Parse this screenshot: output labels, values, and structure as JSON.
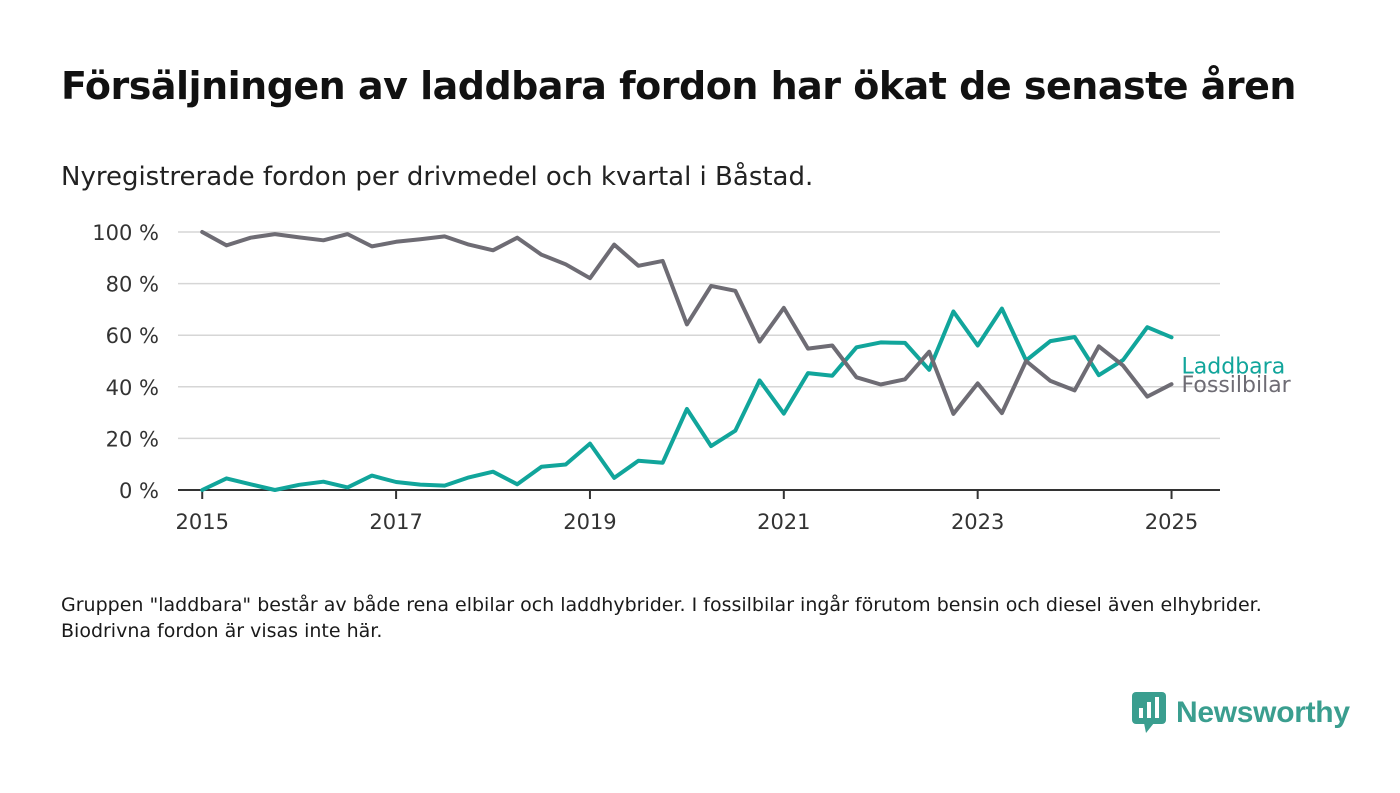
{
  "title": "Försäljningen av laddbara fordon har ökat de senaste åren",
  "subtitle": "Nyregistrerade fordon per drivmedel och kvartal i Båstad.",
  "note": "Gruppen \"laddbara\" består av både rena elbilar och laddhybrider. I fossilbilar ingår förutom bensin och diesel även elhybrider. Biodrivna fordon är visas inte här.",
  "logo": {
    "text": "Newsworthy",
    "icon": "bar-chart-speech-bubble-icon"
  },
  "colors": {
    "laddbara": "#11a59b",
    "fossil": "#6e6c74",
    "grid": "#d6d6d6",
    "axis": "#333333",
    "text": "#333333"
  },
  "chart_data": {
    "type": "line",
    "ylim": [
      0,
      100
    ],
    "yticks": [
      0,
      20,
      40,
      60,
      80,
      100
    ],
    "ytick_labels": [
      "0 %",
      "20 %",
      "40 %",
      "60 %",
      "80 %",
      "100 %"
    ],
    "xlim": [
      2014.75,
      2025.5
    ],
    "xticks": [
      2015,
      2017,
      2019,
      2021,
      2023,
      2025
    ],
    "xtick_labels": [
      "2015",
      "2017",
      "2019",
      "2021",
      "2023",
      "2025"
    ],
    "x": [
      2015,
      2015.25,
      2015.5,
      2015.75,
      2016,
      2016.25,
      2016.5,
      2016.75,
      2017,
      2017.25,
      2017.5,
      2017.75,
      2018,
      2018.25,
      2018.5,
      2018.75,
      2019,
      2019.25,
      2019.5,
      2019.75,
      2020,
      2020.25,
      2020.5,
      2020.75,
      2021,
      2021.25,
      2021.5,
      2021.75,
      2022,
      2022.25,
      2022.5,
      2022.75,
      2023,
      2023.25,
      2023.5,
      2023.75,
      2024,
      2024.25,
      2024.5,
      2024.75,
      2025
    ],
    "series": [
      {
        "name": "Laddbara",
        "color": "#11a59b",
        "values": [
          0,
          4.5,
          2.2,
          0,
          2,
          3.2,
          1,
          5.6,
          3.1,
          2.1,
          1.7,
          4.9,
          7.1,
          2.2,
          9,
          9.9,
          18,
          4.7,
          11.3,
          10.6,
          31.4,
          17,
          23,
          42.5,
          29.6,
          45.3,
          44.3,
          55.3,
          57.2,
          57,
          46.6,
          69.2,
          56,
          70.3,
          50.2,
          57.7,
          59.3,
          44.5,
          50.4,
          63.1,
          59.2
        ]
      },
      {
        "name": "Fossilbilar",
        "color": "#6e6c74",
        "values": [
          100,
          94.8,
          97.8,
          99.2,
          97.9,
          96.8,
          99.2,
          94.4,
          96.2,
          97.2,
          98.3,
          95.1,
          92.9,
          97.8,
          91.2,
          87.5,
          82.1,
          95.1,
          86.9,
          88.8,
          64.2,
          79.1,
          77.2,
          57.5,
          70.6,
          54.8,
          56,
          43.7,
          40.9,
          42.9,
          53.6,
          29.5,
          41.3,
          29.8,
          50,
          42.3,
          38.6,
          55.7,
          48.2,
          36.2,
          41
        ]
      }
    ]
  }
}
